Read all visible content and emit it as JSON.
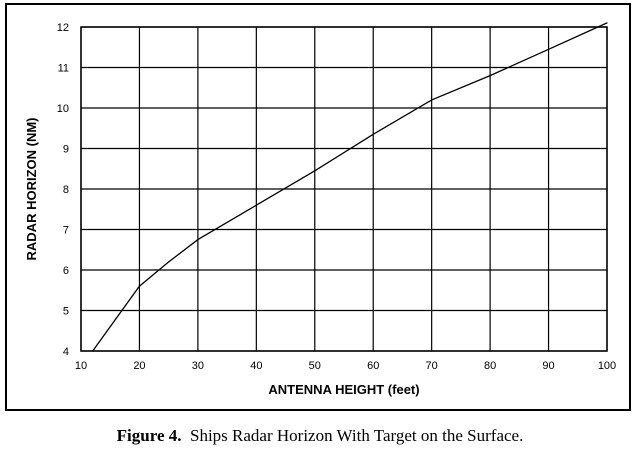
{
  "chart_data": {
    "type": "line",
    "xlabel": "ANTENNA HEIGHT (feet)",
    "ylabel": "RADAR HORIZON (NM)",
    "xlim": [
      10,
      100
    ],
    "ylim": [
      4,
      12
    ],
    "xticks": [
      10,
      20,
      30,
      40,
      50,
      60,
      70,
      80,
      90,
      100
    ],
    "yticks": [
      4,
      5,
      6,
      7,
      8,
      9,
      10,
      11,
      12
    ],
    "grid": true,
    "series": [
      {
        "x": [
          12,
          20,
          25,
          30,
          40,
          50,
          60,
          70,
          80,
          90,
          100
        ],
        "y": [
          4.0,
          5.6,
          6.2,
          6.75,
          7.6,
          8.45,
          9.35,
          10.2,
          10.8,
          11.45,
          12.1
        ]
      }
    ]
  },
  "caption": {
    "label": "Figure 4.",
    "text": "Ships Radar Horizon With Target on the Surface."
  }
}
